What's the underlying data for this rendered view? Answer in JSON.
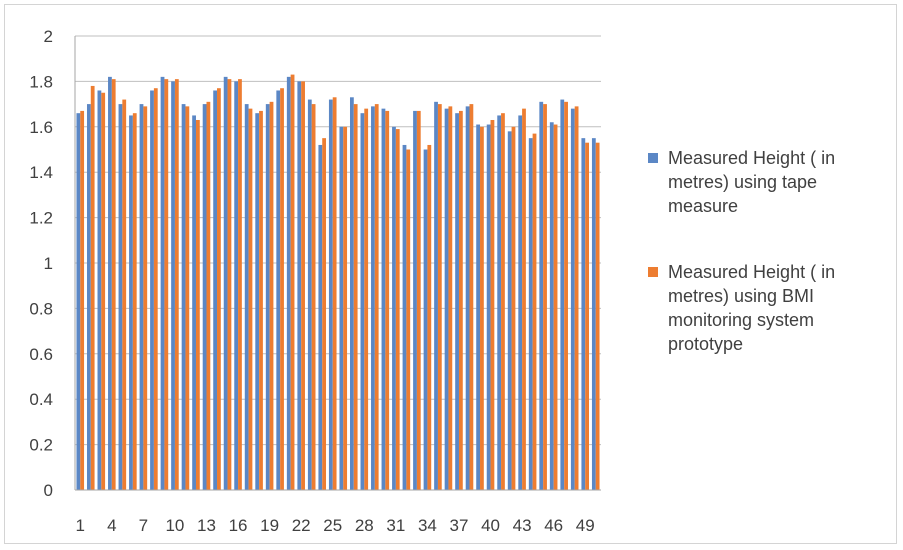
{
  "chart_data": {
    "type": "bar",
    "title": "",
    "xlabel": "",
    "ylabel": "",
    "ylim": [
      0,
      2
    ],
    "yticks": [
      "0",
      "0.2",
      "0.4",
      "0.6",
      "0.8",
      "1",
      "1.2",
      "1.4",
      "1.6",
      "1.8",
      "2"
    ],
    "ytick_values": [
      0,
      0.2,
      0.4,
      0.6,
      0.8,
      1.0,
      1.2,
      1.4,
      1.6,
      1.8,
      2.0
    ],
    "xtick_labels": [
      "1",
      "4",
      "7",
      "10",
      "13",
      "16",
      "19",
      "22",
      "25",
      "28",
      "31",
      "34",
      "37",
      "40",
      "43",
      "46",
      "49"
    ],
    "categories": [
      "1",
      "2",
      "3",
      "4",
      "5",
      "6",
      "7",
      "8",
      "9",
      "10",
      "11",
      "12",
      "13",
      "14",
      "15",
      "16",
      "17",
      "18",
      "19",
      "20",
      "21",
      "22",
      "23",
      "24",
      "25",
      "26",
      "27",
      "28",
      "29",
      "30",
      "31",
      "32",
      "33",
      "34",
      "35",
      "36",
      "37",
      "38",
      "39",
      "40",
      "41",
      "42",
      "43",
      "44",
      "45",
      "46",
      "47",
      "48",
      "49",
      "50"
    ],
    "grid": "horizontal",
    "legend_position": "right",
    "series": [
      {
        "name": "Measured Height ( in metres)  using tape measure",
        "color": "#5b87c5",
        "values": [
          1.66,
          1.7,
          1.76,
          1.82,
          1.7,
          1.65,
          1.7,
          1.76,
          1.82,
          1.8,
          1.7,
          1.65,
          1.7,
          1.76,
          1.82,
          1.8,
          1.7,
          1.66,
          1.7,
          1.76,
          1.82,
          1.8,
          1.72,
          1.52,
          1.72,
          1.6,
          1.73,
          1.66,
          1.69,
          1.68,
          1.6,
          1.52,
          1.67,
          1.5,
          1.71,
          1.68,
          1.66,
          1.69,
          1.61,
          1.61,
          1.65,
          1.58,
          1.65,
          1.55,
          1.71,
          1.62,
          1.72,
          1.68,
          1.55,
          1.55
        ]
      },
      {
        "name": "Measured Height ( in metres)  using BMI monitoring system prototype",
        "color": "#ed7d31",
        "values": [
          1.67,
          1.78,
          1.75,
          1.81,
          1.72,
          1.66,
          1.69,
          1.77,
          1.81,
          1.81,
          1.69,
          1.63,
          1.71,
          1.77,
          1.81,
          1.81,
          1.68,
          1.67,
          1.71,
          1.77,
          1.83,
          1.8,
          1.7,
          1.55,
          1.73,
          1.6,
          1.7,
          1.68,
          1.7,
          1.67,
          1.59,
          1.5,
          1.67,
          1.52,
          1.7,
          1.69,
          1.67,
          1.7,
          1.6,
          1.63,
          1.66,
          1.6,
          1.68,
          1.57,
          1.7,
          1.61,
          1.71,
          1.69,
          1.53,
          1.53
        ]
      }
    ]
  }
}
